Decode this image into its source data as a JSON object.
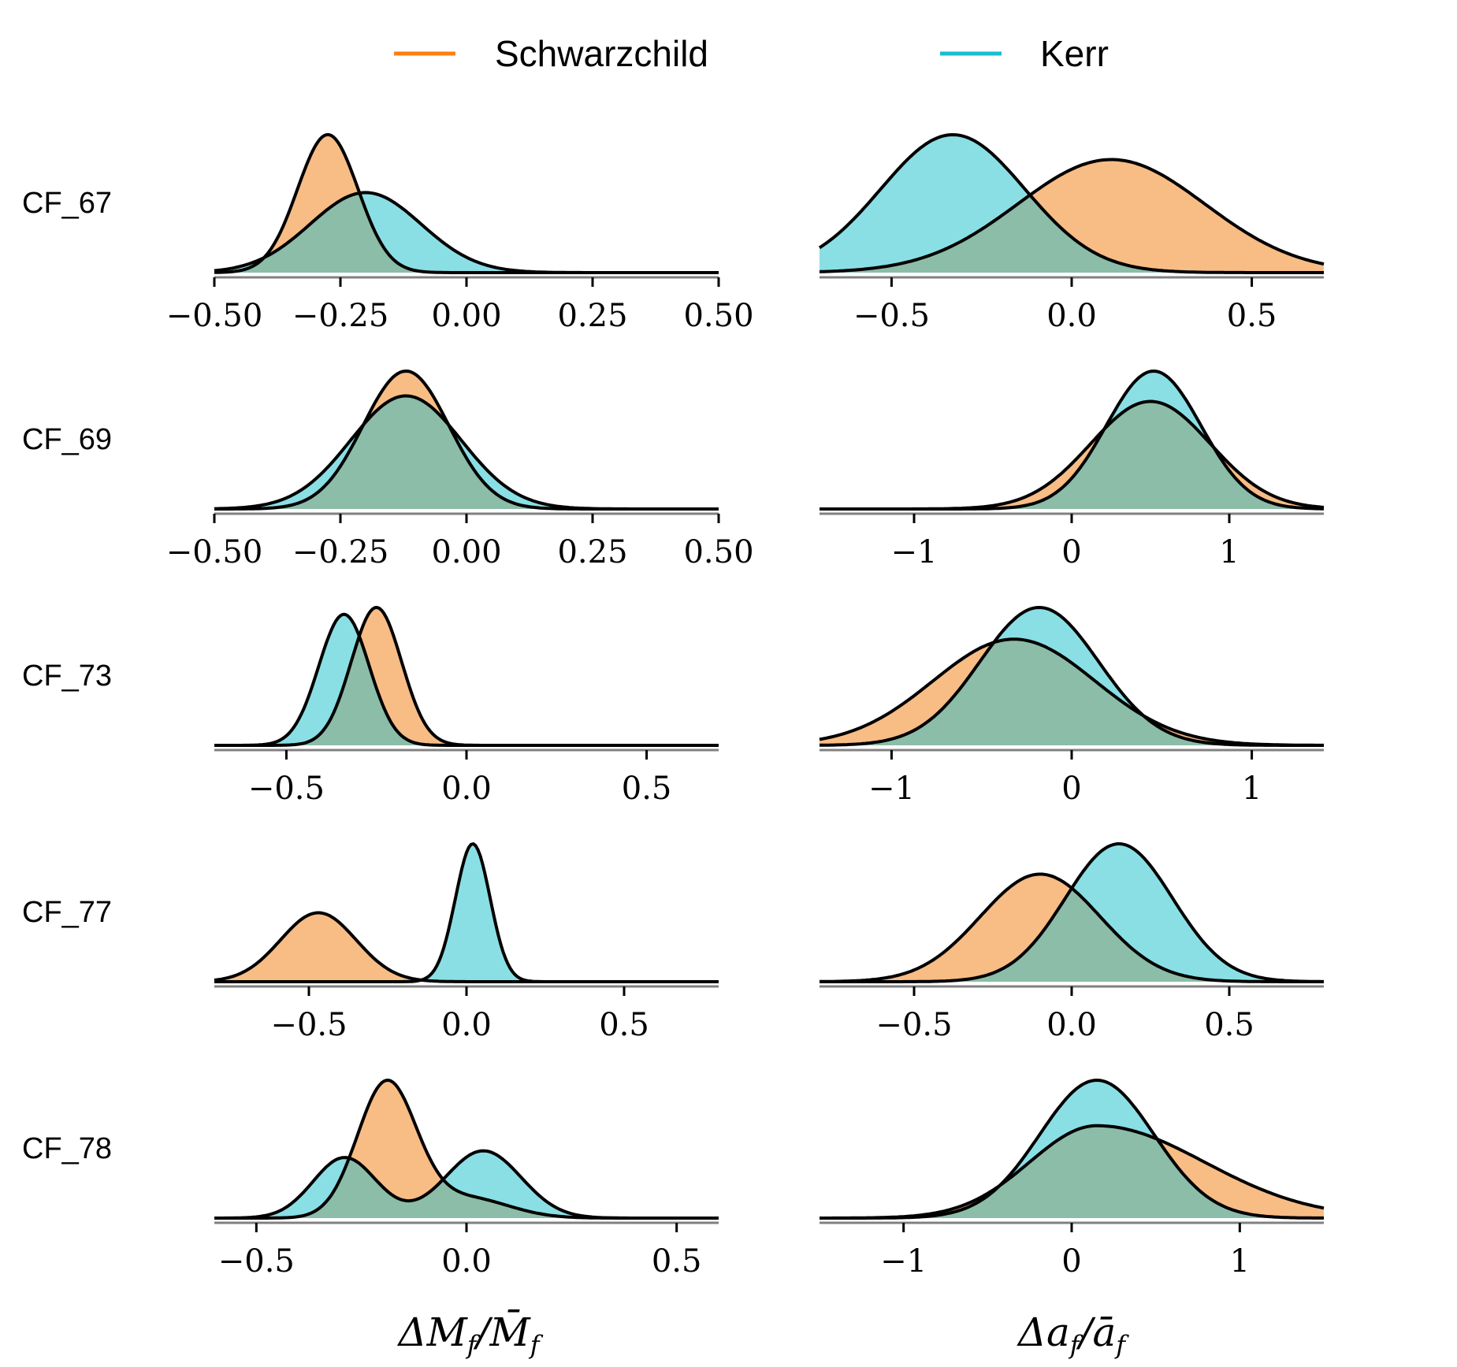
{
  "legend": [
    {
      "label": "Schwarzchild",
      "color": "#ff7f0e"
    },
    {
      "label": "Kerr",
      "color": "#17becf"
    }
  ],
  "colors": {
    "schwarzchild_fill": "#f8bc85",
    "kerr_fill": "#8adfe5",
    "overlap_fill": "#8bbda8",
    "outline": "#000000",
    "axis": "#808080"
  },
  "chart_data": [
    {
      "type": "area",
      "row": "CF_67",
      "param": "dM",
      "xlim": [
        -0.5,
        0.5
      ],
      "ticks": [
        -0.5,
        -0.25,
        0.0,
        0.25,
        0.5
      ],
      "tick_labels": [
        "−0.50",
        "−0.25",
        "0.00",
        "0.25",
        "0.50"
      ],
      "series": [
        {
          "name": "Schwarzchild",
          "peak": -0.275,
          "width": 0.06,
          "height": 1.0
        },
        {
          "name": "Kerr",
          "peak": -0.2,
          "width": 0.11,
          "height": 0.58
        }
      ]
    },
    {
      "type": "area",
      "row": "CF_67",
      "param": "da",
      "xlim": [
        -0.7,
        0.7
      ],
      "ticks": [
        -0.5,
        0.0,
        0.5
      ],
      "tick_labels": [
        "−0.5",
        "0.0",
        "0.5"
      ],
      "series": [
        {
          "name": "Schwarzchild",
          "peak": 0.11,
          "width": 0.26,
          "height": 0.82
        },
        {
          "name": "Kerr",
          "peak": -0.33,
          "width": 0.2,
          "height": 1.0
        }
      ]
    },
    {
      "type": "area",
      "row": "CF_69",
      "param": "dM",
      "xlim": [
        -0.5,
        0.5
      ],
      "ticks": [
        -0.5,
        -0.25,
        0.0,
        0.25,
        0.5
      ],
      "tick_labels": [
        "−0.50",
        "−0.25",
        "0.00",
        "0.25",
        "0.50"
      ],
      "series": [
        {
          "name": "Schwarzchild",
          "peak": -0.12,
          "width": 0.085,
          "height": 1.0
        },
        {
          "name": "Kerr",
          "peak": -0.12,
          "width": 0.11,
          "height": 0.82
        }
      ]
    },
    {
      "type": "area",
      "row": "CF_69",
      "param": "da",
      "xlim": [
        -1.6,
        1.6
      ],
      "ticks": [
        -1,
        0,
        1
      ],
      "tick_labels": [
        "−1",
        "0",
        "1"
      ],
      "series": [
        {
          "name": "Schwarzchild",
          "peak": 0.5,
          "width": 0.38,
          "height": 0.78
        },
        {
          "name": "Kerr",
          "peak": 0.52,
          "width": 0.3,
          "height": 1.0
        }
      ]
    },
    {
      "type": "area",
      "row": "CF_73",
      "param": "dM",
      "xlim": [
        -0.7,
        0.7
      ],
      "ticks": [
        -0.5,
        0.0,
        0.5
      ],
      "tick_labels": [
        "−0.5",
        "0.0",
        "0.5"
      ],
      "series": [
        {
          "name": "Schwarzchild",
          "peak": -0.25,
          "width": 0.07,
          "height": 1.0
        },
        {
          "name": "Kerr",
          "peak": -0.34,
          "width": 0.07,
          "height": 0.95
        }
      ]
    },
    {
      "type": "area",
      "row": "CF_73",
      "param": "da",
      "xlim": [
        -1.4,
        1.4
      ],
      "ticks": [
        -1,
        0,
        1
      ],
      "tick_labels": [
        "−1",
        "0",
        "1"
      ],
      "series": [
        {
          "name": "Schwarzchild",
          "peak": -0.32,
          "width": 0.45,
          "height": 0.77
        },
        {
          "name": "Kerr",
          "peak": -0.18,
          "width": 0.33,
          "height": 1.0
        }
      ]
    },
    {
      "type": "area",
      "row": "CF_77",
      "param": "dM",
      "xlim": [
        -0.8,
        0.8
      ],
      "ticks": [
        -0.5,
        0.0,
        0.5
      ],
      "tick_labels": [
        "−0.5",
        "0.0",
        "0.5"
      ],
      "series": [
        {
          "name": "Schwarzchild",
          "peak": -0.47,
          "width": 0.12,
          "height": 0.5
        },
        {
          "name": "Kerr",
          "peak": 0.02,
          "width": 0.055,
          "height": 1.0
        }
      ]
    },
    {
      "type": "area",
      "row": "CF_77",
      "param": "da",
      "xlim": [
        -0.8,
        0.8
      ],
      "ticks": [
        -0.5,
        0.0,
        0.5
      ],
      "tick_labels": [
        "−0.5",
        "0.0",
        "0.5"
      ],
      "series": [
        {
          "name": "Schwarzchild",
          "peak": -0.1,
          "width": 0.19,
          "height": 0.78
        },
        {
          "name": "Kerr",
          "peak": 0.15,
          "width": 0.17,
          "height": 1.0
        }
      ]
    },
    {
      "type": "area",
      "row": "CF_78",
      "param": "dM",
      "xlim": [
        -0.6,
        0.6
      ],
      "ticks": [
        -0.5,
        0.0,
        0.5
      ],
      "tick_labels": [
        "−0.5",
        "0.0",
        "0.5"
      ],
      "series": [
        {
          "name": "Schwarzchild",
          "peak": -0.19,
          "width": 0.07,
          "height": 1.0,
          "peak2": 0.0,
          "width2": 0.1,
          "height2": 0.15
        },
        {
          "name": "Kerr",
          "peak": -0.29,
          "width": 0.075,
          "height": 0.45,
          "peak2": 0.04,
          "width2": 0.09,
          "height2": 0.5
        }
      ]
    },
    {
      "type": "area",
      "row": "CF_78",
      "param": "da",
      "xlim": [
        -1.5,
        1.5
      ],
      "ticks": [
        -1,
        0,
        1
      ],
      "tick_labels": [
        "−1",
        "0",
        "1"
      ],
      "series": [
        {
          "name": "Schwarzchild",
          "peak": 0.15,
          "width": 0.4,
          "height": 0.67,
          "skew": true
        },
        {
          "name": "Kerr",
          "peak": 0.15,
          "width": 0.34,
          "height": 1.0
        }
      ]
    }
  ],
  "rows": [
    {
      "label": "CF_67"
    },
    {
      "label": "CF_69"
    },
    {
      "label": "CF_73"
    },
    {
      "label": "CF_77"
    },
    {
      "label": "CF_78"
    }
  ],
  "xlabels": {
    "left": "ΔM_f / M̄_f",
    "right": "Δa_f / ā_f"
  }
}
